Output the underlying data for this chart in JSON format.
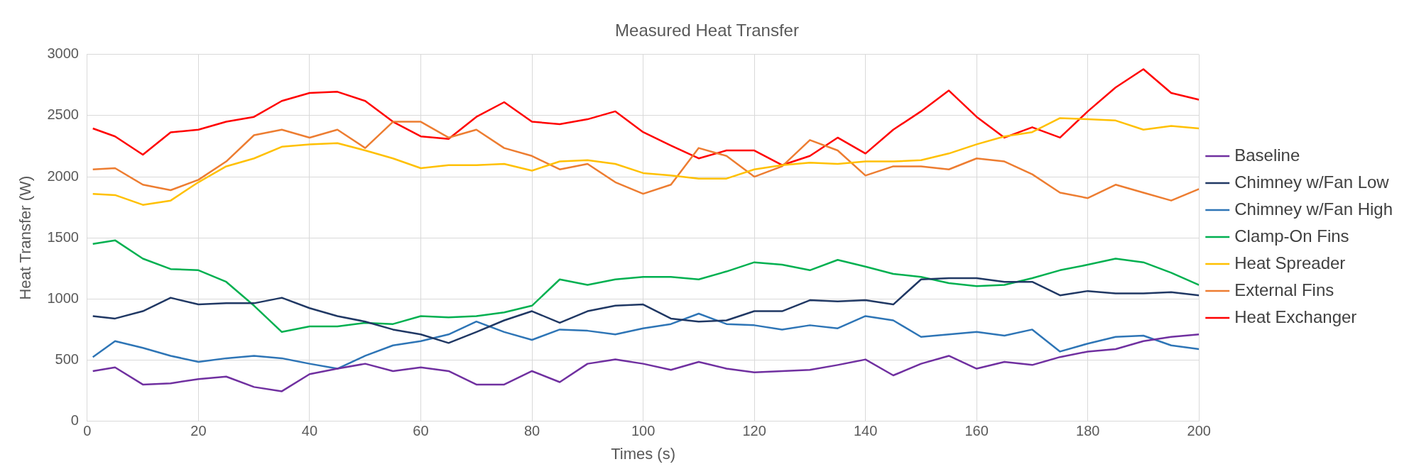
{
  "chart_data": {
    "type": "line",
    "title": "Measured Heat Transfer",
    "xlabel": "Times (s)",
    "ylabel": "Heat Transfer (W)",
    "x": [
      1,
      5,
      10,
      15,
      20,
      25,
      30,
      35,
      40,
      45,
      50,
      55,
      60,
      65,
      70,
      75,
      80,
      85,
      90,
      95,
      100,
      105,
      110,
      115,
      120,
      125,
      130,
      135,
      140,
      145,
      150,
      155,
      160,
      165,
      170,
      175,
      180,
      185,
      190,
      195,
      200
    ],
    "series": [
      {
        "name": "Baseline",
        "color": "#7030a0",
        "values": [
          410,
          440,
          300,
          310,
          345,
          365,
          280,
          245,
          385,
          430,
          470,
          410,
          440,
          410,
          300,
          300,
          410,
          320,
          470,
          505,
          470,
          420,
          485,
          430,
          400,
          410,
          420,
          460,
          505,
          375,
          470,
          535,
          430,
          485,
          460,
          525,
          570,
          590,
          655,
          690,
          710
        ]
      },
      {
        "name": "Chimney w/Fan Low",
        "color": "#203864",
        "values": [
          860,
          840,
          900,
          1010,
          955,
          965,
          965,
          1010,
          925,
          860,
          815,
          750,
          710,
          640,
          730,
          825,
          900,
          805,
          900,
          945,
          955,
          840,
          815,
          825,
          900,
          900,
          990,
          980,
          990,
          955,
          1160,
          1170,
          1170,
          1140,
          1140,
          1030,
          1065,
          1045,
          1045,
          1055,
          1030
        ]
      },
      {
        "name": "Chimney w/Fan High",
        "color": "#2e75b6",
        "values": [
          525,
          655,
          600,
          535,
          485,
          515,
          535,
          515,
          470,
          430,
          535,
          620,
          655,
          710,
          815,
          730,
          665,
          750,
          740,
          710,
          760,
          795,
          880,
          795,
          785,
          750,
          785,
          760,
          860,
          825,
          690,
          710,
          730,
          700,
          750,
          570,
          635,
          690,
          700,
          620,
          590
        ]
      },
      {
        "name": "Clamp-On Fins",
        "color": "#00b050",
        "values": [
          1450,
          1480,
          1330,
          1245,
          1235,
          1140,
          945,
          730,
          775,
          775,
          805,
          795,
          860,
          850,
          860,
          890,
          945,
          1160,
          1115,
          1160,
          1180,
          1180,
          1160,
          1225,
          1300,
          1280,
          1235,
          1320,
          1265,
          1205,
          1180,
          1130,
          1105,
          1115,
          1170,
          1235,
          1280,
          1330,
          1300,
          1215,
          1115
        ]
      },
      {
        "name": "Heat Spreader",
        "color": "#ffc000",
        "values": [
          1860,
          1850,
          1770,
          1805,
          1955,
          2085,
          2150,
          2245,
          2265,
          2275,
          2215,
          2150,
          2070,
          2095,
          2095,
          2105,
          2050,
          2125,
          2135,
          2105,
          2030,
          2010,
          1985,
          1985,
          2060,
          2095,
          2115,
          2105,
          2125,
          2125,
          2135,
          2190,
          2265,
          2330,
          2365,
          2480,
          2470,
          2460,
          2385,
          2415,
          2395
        ]
      },
      {
        "name": "External Fins",
        "color": "#ed7d31",
        "values": [
          2060,
          2070,
          1935,
          1890,
          1975,
          2125,
          2340,
          2385,
          2320,
          2385,
          2235,
          2450,
          2450,
          2320,
          2385,
          2235,
          2170,
          2060,
          2105,
          1955,
          1860,
          1935,
          2235,
          2170,
          2000,
          2085,
          2300,
          2215,
          2010,
          2085,
          2085,
          2060,
          2150,
          2125,
          2020,
          1870,
          1825,
          1935,
          1870,
          1805,
          1900
        ]
      },
      {
        "name": "Heat Exchanger",
        "color": "#ff0000",
        "values": [
          2395,
          2330,
          2180,
          2363,
          2385,
          2450,
          2490,
          2620,
          2685,
          2695,
          2620,
          2450,
          2330,
          2310,
          2490,
          2610,
          2450,
          2430,
          2470,
          2535,
          2365,
          2255,
          2150,
          2215,
          2215,
          2095,
          2170,
          2320,
          2190,
          2385,
          2535,
          2705,
          2490,
          2320,
          2405,
          2320,
          2535,
          2730,
          2880,
          2685,
          2630
        ]
      }
    ],
    "xlim": [
      0,
      200
    ],
    "xticks": [
      0,
      20,
      40,
      60,
      80,
      100,
      120,
      140,
      160,
      180,
      200
    ],
    "ylim": [
      0,
      3000
    ],
    "yticks": [
      0,
      500,
      1000,
      1500,
      2000,
      2500,
      3000
    ],
    "grid": true,
    "legend": "right",
    "marker": "none",
    "line_style": "solid"
  }
}
